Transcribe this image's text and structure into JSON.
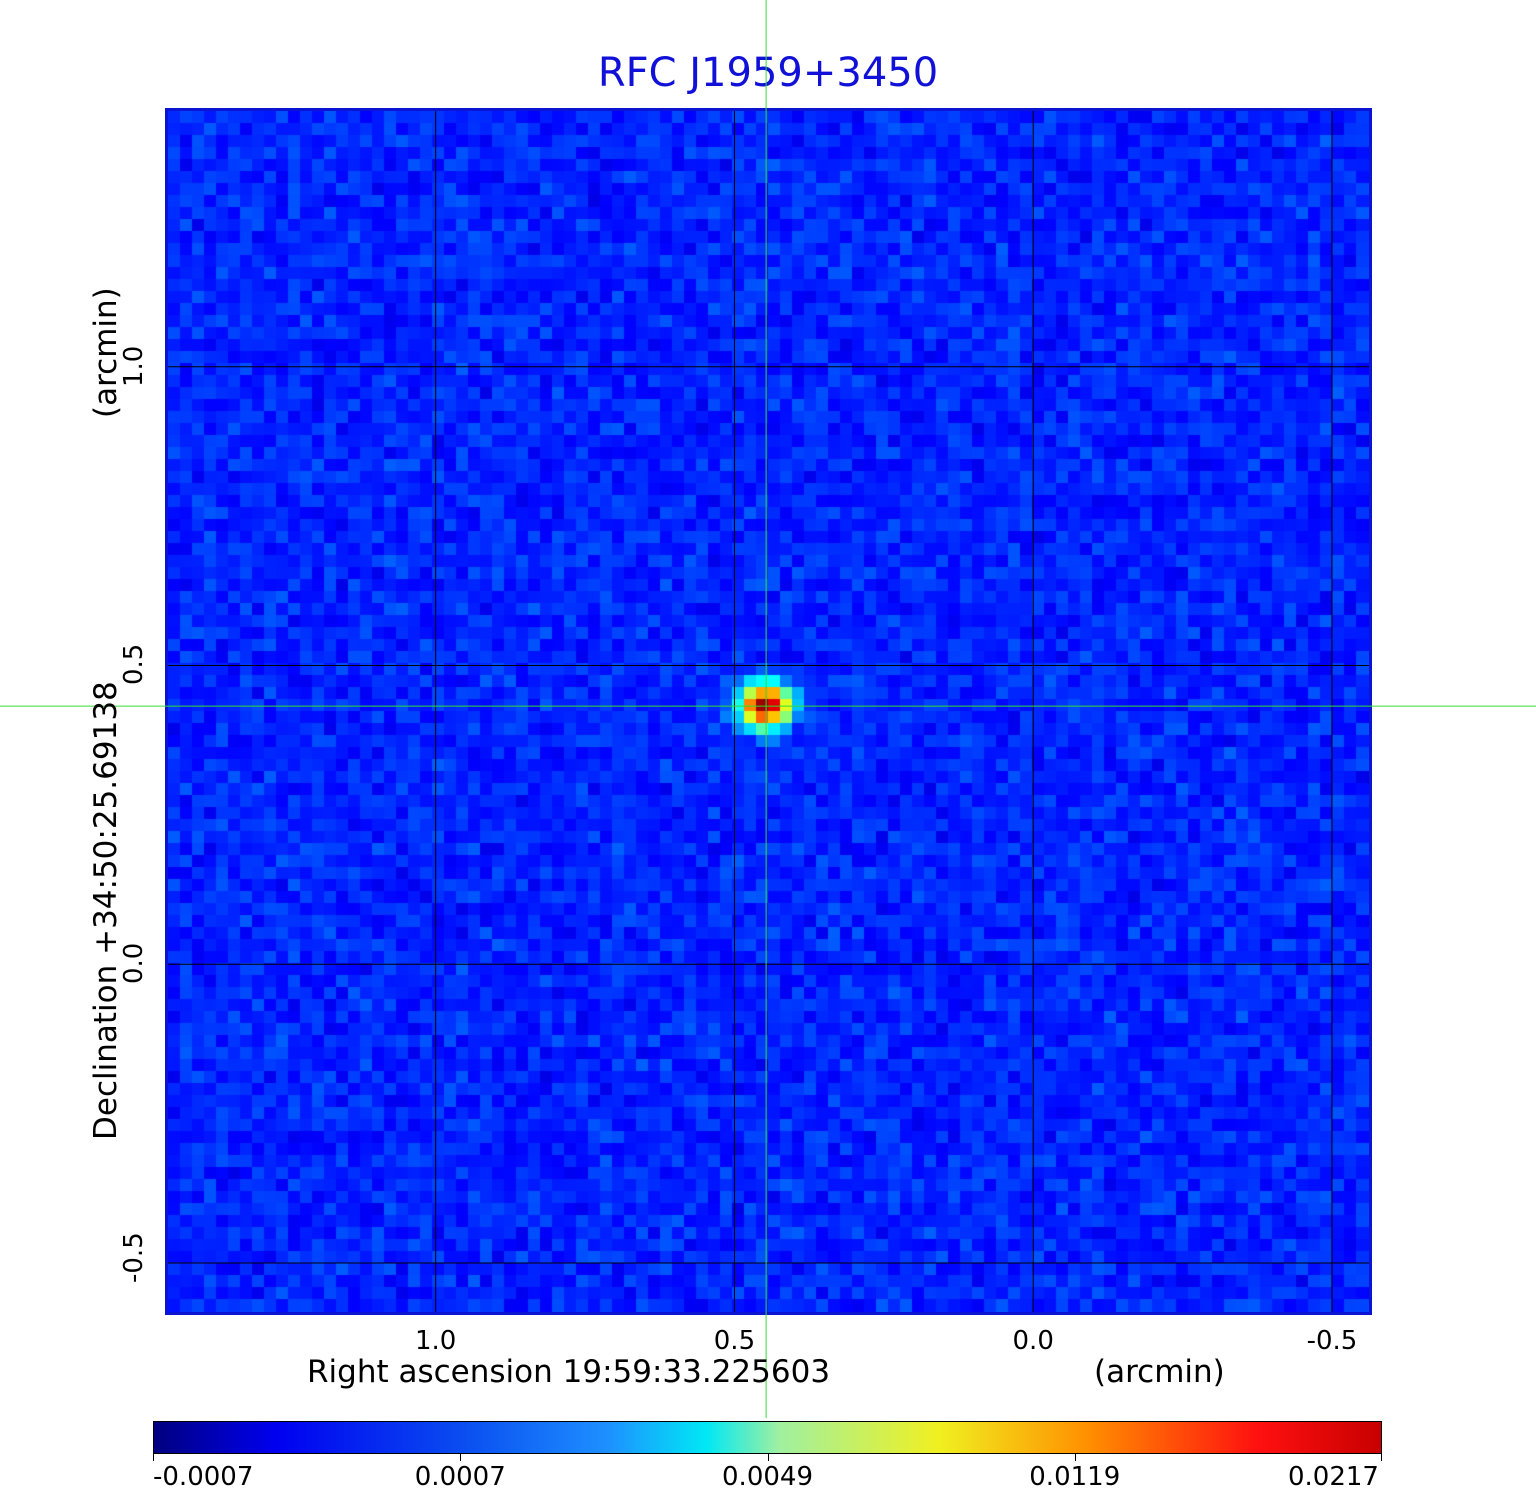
{
  "chart_data": {
    "type": "heatmap",
    "title": "RFC J1959+3450",
    "xlabel": "Right ascension  19:59:33.225603",
    "xlabel_unit": "(arcmin)",
    "ylabel": "Declination  +34:50:25.69138",
    "ylabel_unit": "(arcmin)",
    "xlim": [
      1.448,
      -0.562
    ],
    "ylim": [
      -0.582,
      1.428
    ],
    "x_ticks": [
      "1.0",
      "0.5",
      "0.0",
      "-0.5"
    ],
    "y_ticks": [
      "1.0",
      "0.5",
      "0.0",
      "-0.5"
    ],
    "x_tick_values": [
      1.0,
      0.5,
      0.0,
      -0.5
    ],
    "y_tick_values": [
      1.0,
      0.5,
      0.0,
      -0.5
    ],
    "grid": true,
    "crosshair": {
      "x": 0.447,
      "y": 0.432,
      "color": "#33dd33"
    },
    "peak": {
      "x": 0.447,
      "y": 0.432,
      "value": 0.0217
    },
    "colorbar": {
      "ticks": [
        "-0.0007",
        "0.0007",
        "0.0049",
        "0.0119",
        "0.0217"
      ],
      "tick_values": [
        -0.0007,
        0.0007,
        0.0049,
        0.0119,
        0.0217
      ],
      "colormap": "jet"
    },
    "colors": {
      "title": "#1010d8",
      "frame": "#0a14d2",
      "background_noise": "#1e6cf0"
    }
  }
}
